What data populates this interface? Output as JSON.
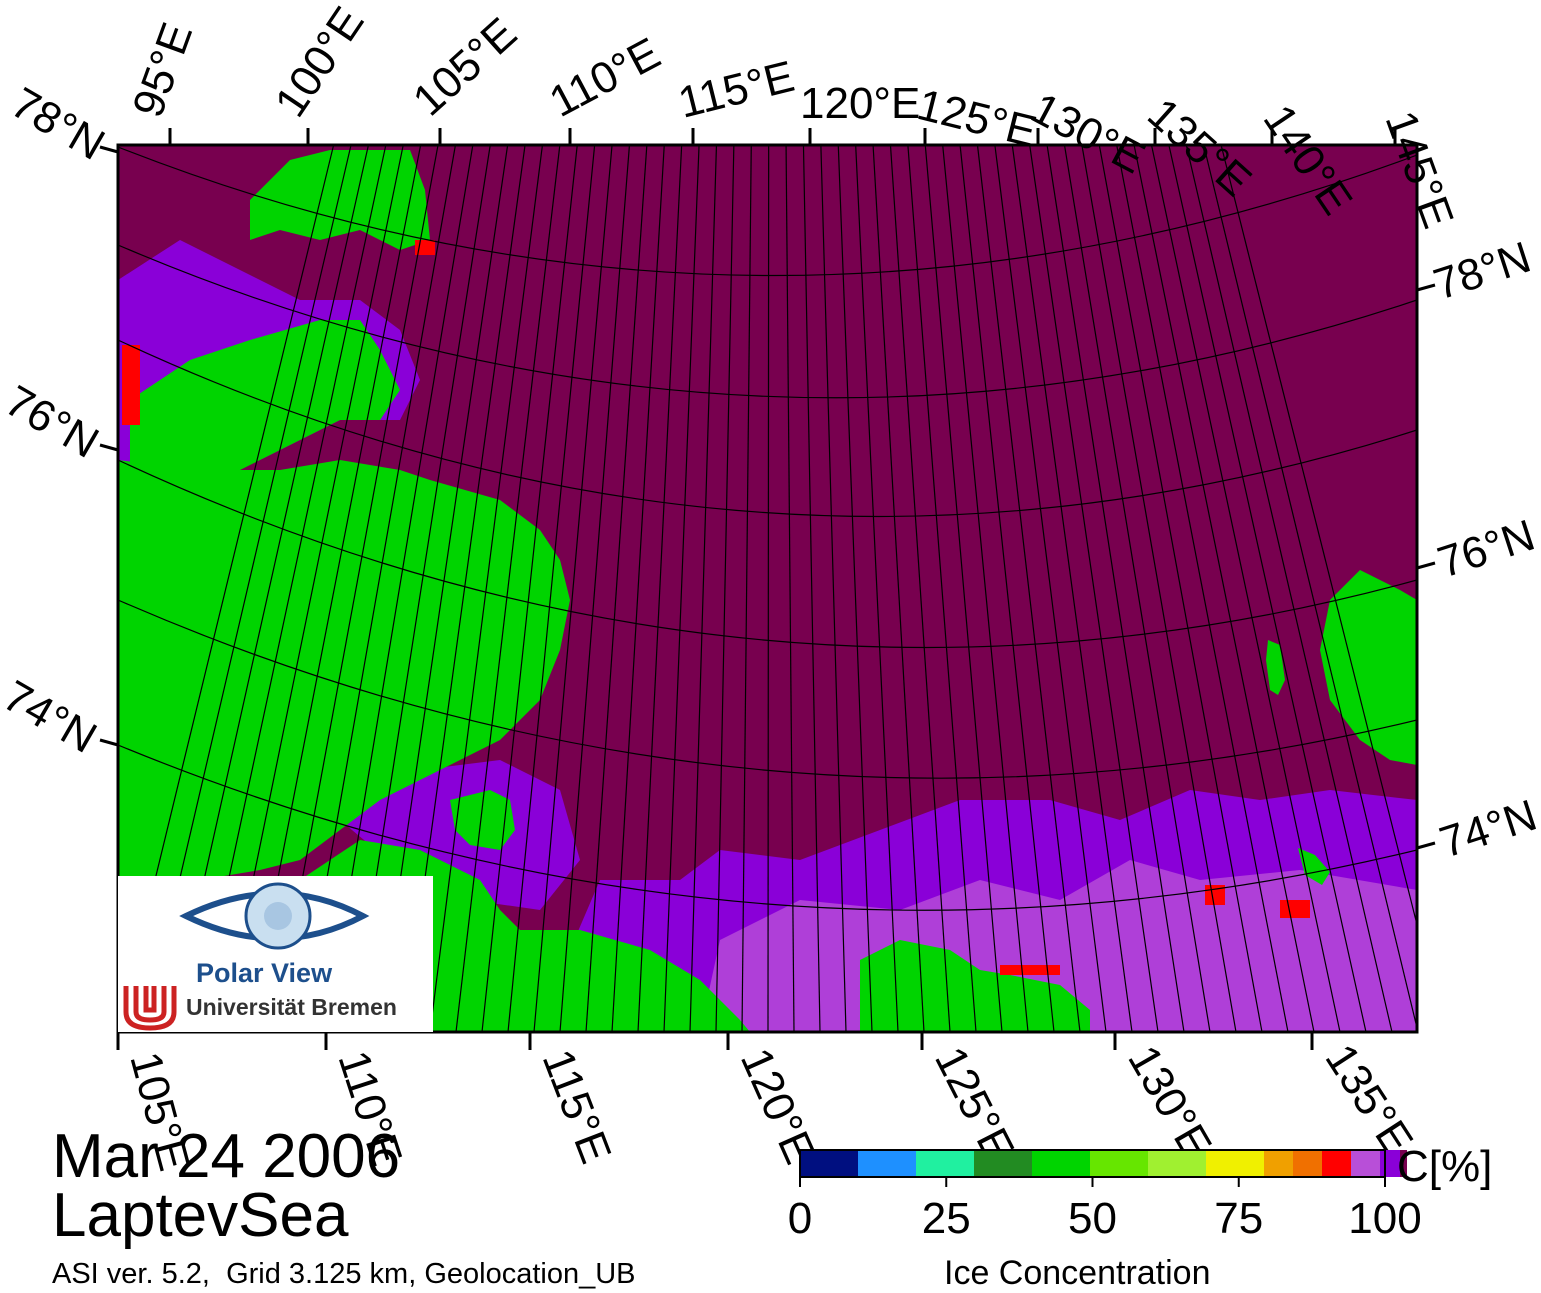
{
  "map": {
    "top_lon_labels": [
      "95°E",
      "100°E",
      "105°E",
      "110°E",
      "115°E",
      "120°E",
      "125°E",
      "130°E",
      "135°E",
      "140°E",
      "145°E"
    ],
    "bottom_lon_labels": [
      "105°E",
      "110°E",
      "115°E",
      "120°E",
      "125°E",
      "130°E",
      "135°E"
    ],
    "left_lat_labels": [
      "78°N",
      "76°N",
      "74°N"
    ],
    "right_lat_labels": [
      "78°N",
      "76°N",
      "74°N"
    ],
    "colors": {
      "ocean_ice_100": "#78004f",
      "land": "#00d400",
      "coast_gray": "#8a8a8a",
      "ice_90": "#8a00d8",
      "ice_95": "#b84fd8",
      "red": "#ff0000",
      "grid": "#000000"
    }
  },
  "caption": {
    "date": "Mar 24 2006",
    "region": "LaptevSea",
    "info": "ASI ver. 5.2,  Grid 3.125 km, Geolocation_UB"
  },
  "colorbar": {
    "unit": "C[%]",
    "title": "Ice Concentration",
    "tick_labels": [
      "0",
      "25",
      "50",
      "75",
      "100"
    ],
    "colors": [
      "#000f80",
      "#1e90ff",
      "#20f0a0",
      "#228b22",
      "#00d400",
      "#66e600",
      "#a0f030",
      "#f0f000",
      "#f0a000",
      "#f07000",
      "#ff0000",
      "#b84fd8",
      "#8a00d8",
      "#78004f"
    ]
  },
  "logo": {
    "name": "Polar View",
    "university": "Universität Bremen"
  }
}
